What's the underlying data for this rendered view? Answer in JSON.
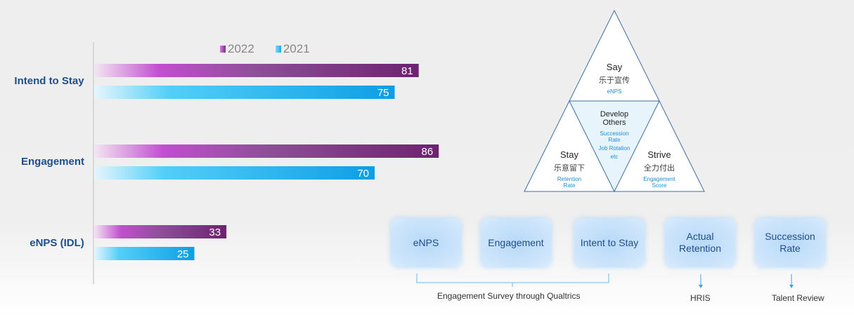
{
  "chart_data": {
    "type": "bar",
    "orientation": "horizontal",
    "categories": [
      "Intend to Stay",
      "Engagement",
      "eNPS (IDL)"
    ],
    "series": [
      {
        "name": "2022",
        "values": [
          81,
          86,
          33
        ]
      },
      {
        "name": "2021",
        "values": [
          75,
          70,
          25
        ]
      }
    ],
    "legend_position": "top",
    "colors": {
      "2022": "#7a2e82",
      "2021": "#1ea7e8"
    }
  },
  "triangle": {
    "say": {
      "title": "Say",
      "cn": "乐于宣传",
      "sub": [
        "eNPS"
      ]
    },
    "center": {
      "title": "Develop Others",
      "sub": [
        "Succession",
        "Rate",
        "Job Rotation",
        "etc"
      ]
    },
    "stay": {
      "title": "Stay",
      "cn": "乐意留下",
      "sub": [
        "Retention",
        "Rate"
      ]
    },
    "strive": {
      "title": "Strive",
      "cn": "全力付出",
      "sub": [
        "Engagement",
        "Score"
      ]
    }
  },
  "metrics": {
    "enps": "eNPS",
    "engagement": "Engagement",
    "intend": "Intent to Stay",
    "retention": "Actual Retention",
    "succession": "Succession Rate"
  },
  "footer": {
    "survey": "Engagement Survey through Qualtrics",
    "hris": "HRIS",
    "talent": "Talent Review"
  }
}
